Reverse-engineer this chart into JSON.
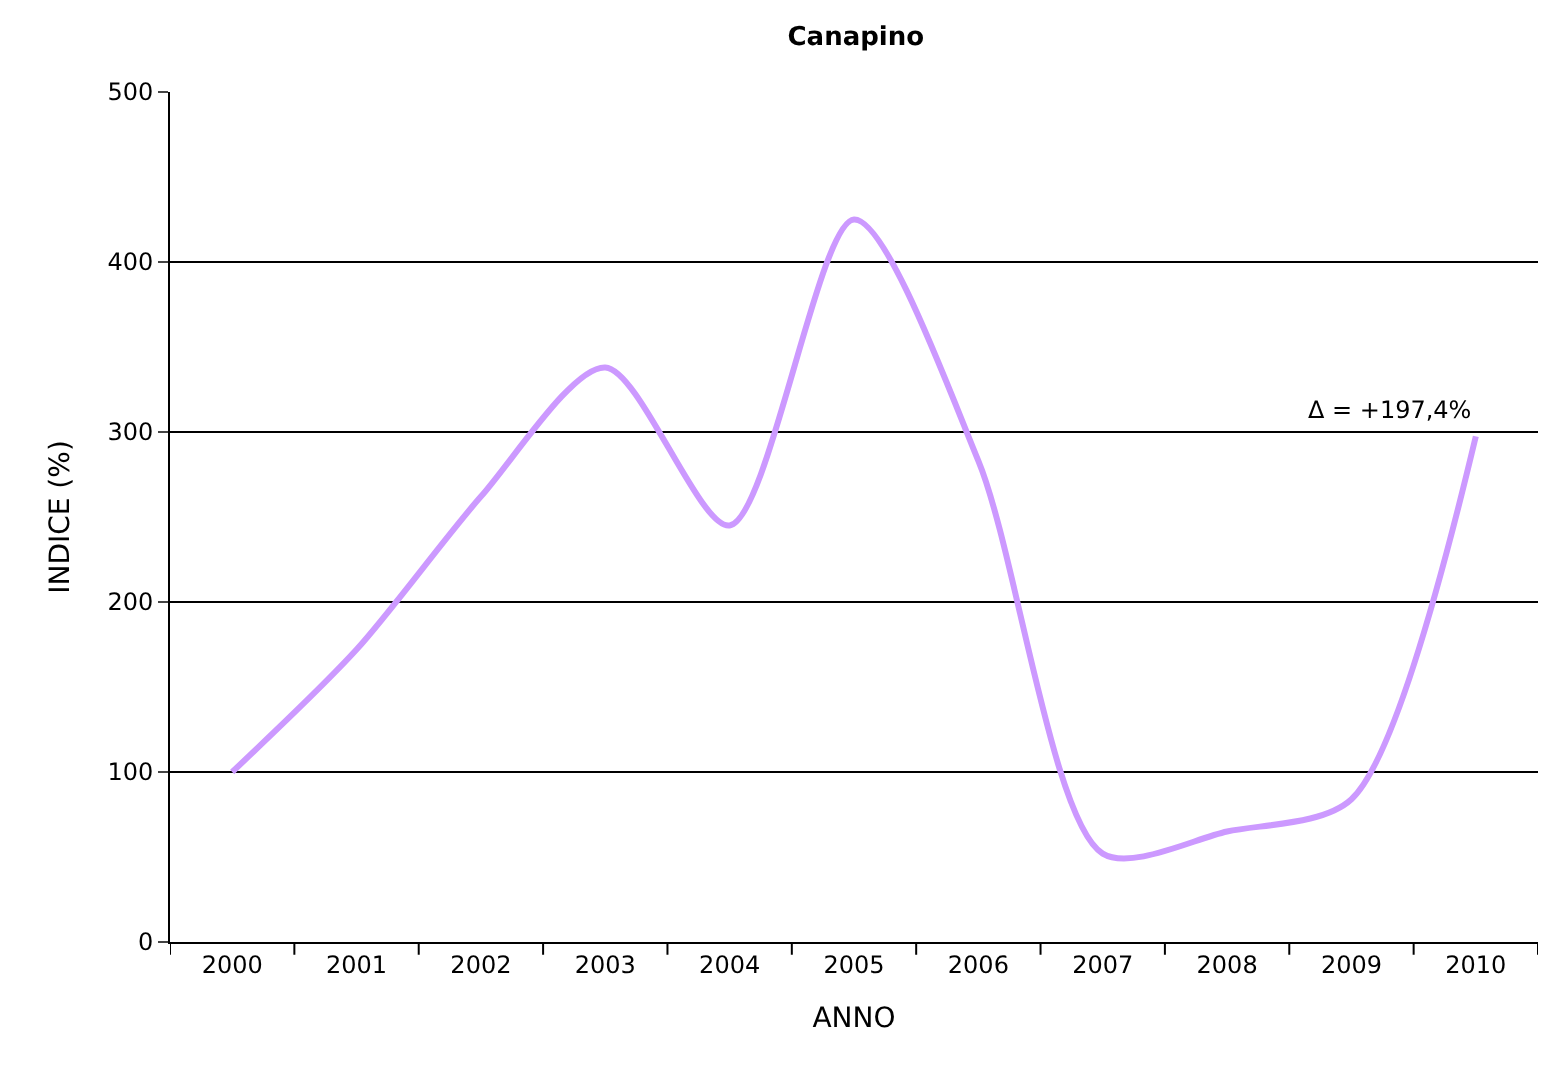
{
  "chart_data": {
    "type": "line",
    "title": "Canapino",
    "xlabel": "ANNO",
    "ylabel": "INDICE (%)",
    "categories": [
      "2000",
      "2001",
      "2002",
      "2003",
      "2004",
      "2005",
      "2006",
      "2007",
      "2008",
      "2009",
      "2010"
    ],
    "series": [
      {
        "color": "#cc99ff",
        "values": [
          100,
          172,
          262,
          338,
          245,
          425,
          283,
          52,
          65,
          84,
          297.4
        ]
      }
    ],
    "ylim": [
      0,
      500
    ],
    "yticks": [
      0,
      100,
      200,
      300,
      400,
      500
    ],
    "grid": "y",
    "legend": false,
    "marker": "none",
    "line_style": "solid",
    "annotations": [
      {
        "text": "Δ = +197,4%",
        "x": "2010",
        "y": 297.4
      }
    ]
  }
}
